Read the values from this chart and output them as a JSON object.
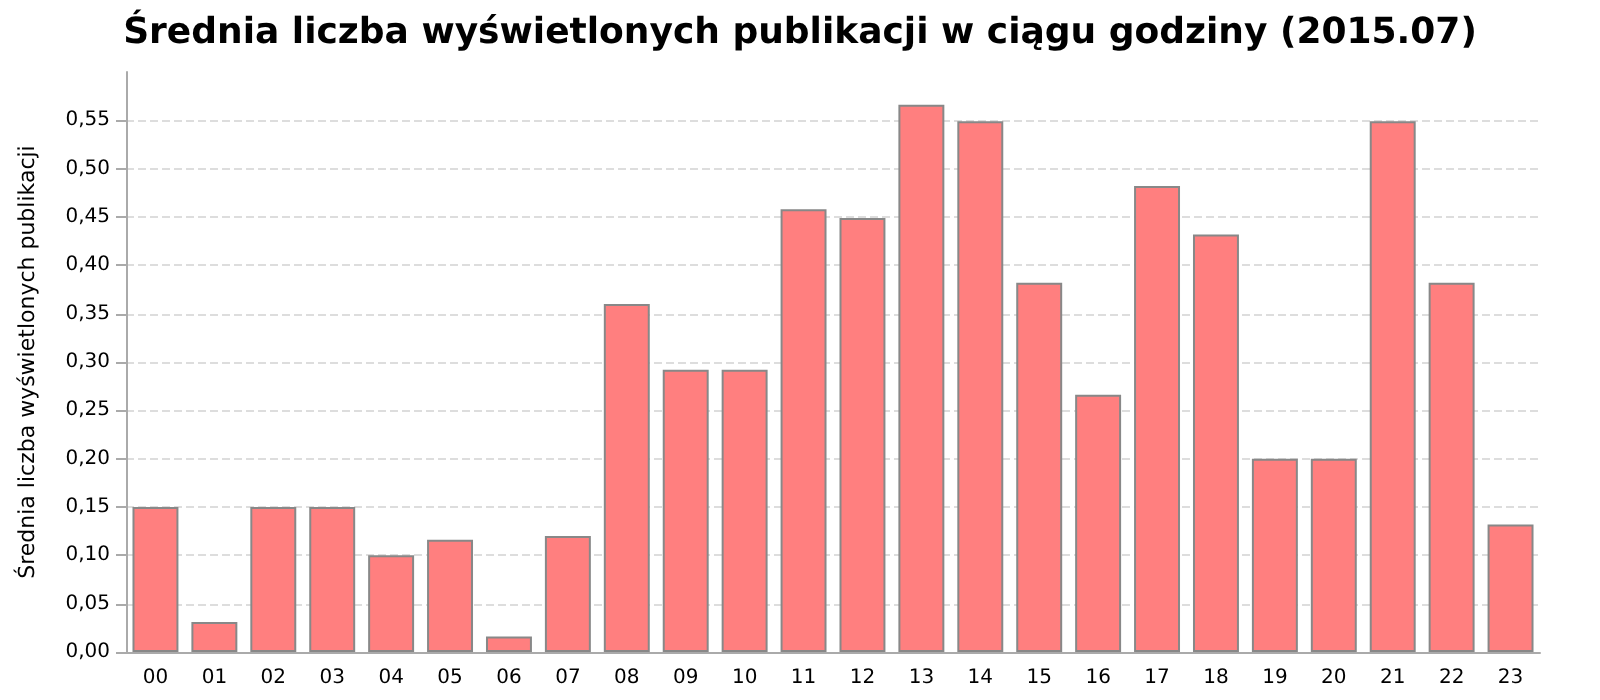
{
  "chart_data": {
    "type": "bar",
    "title": "Średnia liczba wyświetlonych publikacji w ciągu godziny (2015.07)",
    "ylabel": "Średnia liczba wyświetlonych publikacji",
    "categories": [
      "00",
      "01",
      "02",
      "03",
      "04",
      "05",
      "06",
      "07",
      "08",
      "09",
      "10",
      "11",
      "12",
      "13",
      "14",
      "15",
      "16",
      "17",
      "18",
      "19",
      "20",
      "21",
      "22",
      "23"
    ],
    "values": [
      0.15,
      0.031,
      0.15,
      0.15,
      0.1,
      0.116,
      0.016,
      0.12,
      0.36,
      0.292,
      0.292,
      0.458,
      0.449,
      0.566,
      0.549,
      0.382,
      0.266,
      0.482,
      0.432,
      0.2,
      0.2,
      0.549,
      0.382,
      0.132
    ],
    "color": "#ff7f7f",
    "ylim": [
      0,
      0.6
    ],
    "yticks": [
      {
        "value": 0,
        "label": "0,00"
      },
      {
        "value": 0.05,
        "label": "0,05"
      },
      {
        "value": 0.1,
        "label": "0,10"
      },
      {
        "value": 0.15,
        "label": "0,15"
      },
      {
        "value": 0.2,
        "label": "0,20"
      },
      {
        "value": 0.25,
        "label": "0,25"
      },
      {
        "value": 0.3,
        "label": "0,30"
      },
      {
        "value": 0.35,
        "label": "0,35"
      },
      {
        "value": 0.4,
        "label": "0,40"
      },
      {
        "value": 0.45,
        "label": "0,45"
      },
      {
        "value": 0.5,
        "label": "0,50"
      },
      {
        "value": 0.55,
        "label": "0,55"
      }
    ],
    "grid": "y"
  }
}
